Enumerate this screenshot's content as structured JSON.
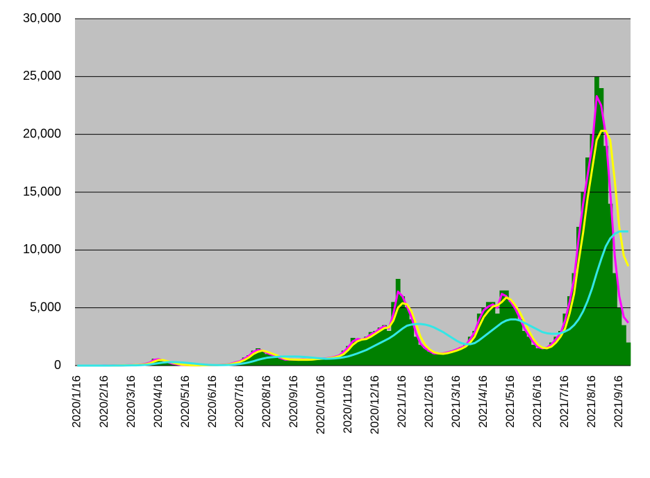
{
  "chart_data": {
    "type": "bar",
    "categories": [
      "2020/1/16",
      null,
      null,
      null,
      null,
      null,
      "2020/2/16",
      null,
      null,
      null,
      null,
      null,
      "2020/3/16",
      null,
      null,
      null,
      null,
      null,
      "2020/4/16",
      null,
      null,
      null,
      null,
      null,
      "2020/5/16",
      null,
      null,
      null,
      null,
      null,
      "2020/6/16",
      null,
      null,
      null,
      null,
      null,
      "2020/7/16",
      null,
      null,
      null,
      null,
      null,
      "2020/8/16",
      null,
      null,
      null,
      null,
      null,
      "2020/9/16",
      null,
      null,
      null,
      null,
      null,
      "2020/10/16",
      null,
      null,
      null,
      null,
      null,
      "2020/11/16",
      null,
      null,
      null,
      null,
      null,
      "2020/12/16",
      null,
      null,
      null,
      null,
      null,
      "2021/1/16",
      null,
      null,
      null,
      null,
      null,
      "2021/2/16",
      null,
      null,
      null,
      null,
      null,
      "2021/3/16",
      null,
      null,
      null,
      null,
      null,
      "2021/4/16",
      null,
      null,
      null,
      null,
      null,
      "2021/5/16",
      null,
      null,
      null,
      null,
      null,
      "2021/6/16",
      null,
      null,
      null,
      null,
      null,
      "2021/7/16",
      null,
      null,
      null,
      null,
      null,
      "2021/8/16",
      null,
      null,
      null,
      null,
      null,
      "2021/9/16",
      null,
      null
    ],
    "series": [
      {
        "type": "bar",
        "color": "#008000",
        "values": [
          0,
          0,
          0,
          0,
          0,
          0,
          5,
          10,
          15,
          20,
          30,
          50,
          40,
          60,
          100,
          200,
          300,
          600,
          500,
          400,
          250,
          150,
          100,
          50,
          30,
          20,
          20,
          30,
          40,
          40,
          50,
          60,
          90,
          100,
          200,
          300,
          400,
          700,
          900,
          1300,
          1500,
          1200,
          1000,
          900,
          800,
          600,
          500,
          550,
          500,
          500,
          550,
          500,
          550,
          600,
          600,
          600,
          700,
          800,
          900,
          1300,
          1700,
          2400,
          2300,
          2200,
          2500,
          2900,
          3000,
          3300,
          3500,
          3000,
          5500,
          7500,
          6000,
          5000,
          4000,
          2500,
          1800,
          1500,
          1200,
          1000,
          1100,
          1000,
          1200,
          1300,
          1400,
          1600,
          1800,
          2500,
          3000,
          4500,
          5000,
          5500,
          5500,
          4500,
          6500,
          6500,
          5500,
          5000,
          4000,
          3000,
          2500,
          1800,
          1500,
          1500,
          1600,
          2000,
          2500,
          3000,
          4500,
          6000,
          8000,
          12000,
          15000,
          18000,
          20000,
          25000,
          24000,
          19000,
          14000,
          8000,
          5000,
          3500,
          2000
        ]
      },
      {
        "type": "line",
        "color": "#ff00ff",
        "values": [
          0,
          0,
          0,
          0,
          0,
          0,
          5,
          8,
          12,
          18,
          25,
          40,
          45,
          55,
          80,
          150,
          250,
          500,
          550,
          450,
          300,
          180,
          120,
          60,
          35,
          25,
          20,
          25,
          35,
          40,
          45,
          55,
          75,
          95,
          170,
          280,
          380,
          600,
          850,
          1200,
          1350,
          1300,
          1100,
          950,
          850,
          650,
          520,
          530,
          510,
          500,
          530,
          510,
          540,
          580,
          600,
          620,
          680,
          760,
          880,
          1200,
          1600,
          2100,
          2300,
          2250,
          2400,
          2700,
          2900,
          3200,
          3400,
          3200,
          4500,
          6400,
          6000,
          5100,
          4200,
          2800,
          1900,
          1500,
          1250,
          1050,
          1050,
          1050,
          1150,
          1250,
          1400,
          1550,
          1750,
          2300,
          2900,
          4000,
          4800,
          5100,
          5300,
          5000,
          6200,
          6000,
          5500,
          4900,
          4100,
          3200,
          2600,
          2000,
          1600,
          1500,
          1550,
          1850,
          2300,
          2800,
          3900,
          5500,
          7500,
          11000,
          14000,
          16500,
          19000,
          23300,
          22500,
          20000,
          15000,
          9500,
          6000,
          4200,
          3700
        ]
      },
      {
        "type": "line",
        "color": "#ffff00",
        "values": [
          0,
          0,
          0,
          0,
          0,
          0,
          3,
          6,
          10,
          14,
          20,
          30,
          40,
          50,
          65,
          110,
          190,
          350,
          480,
          480,
          380,
          260,
          170,
          100,
          50,
          30,
          22,
          22,
          30,
          35,
          42,
          48,
          62,
          80,
          130,
          220,
          320,
          480,
          700,
          1000,
          1200,
          1300,
          1200,
          1050,
          920,
          760,
          600,
          530,
          520,
          500,
          510,
          500,
          520,
          560,
          590,
          610,
          650,
          710,
          820,
          1000,
          1350,
          1800,
          2100,
          2250,
          2300,
          2500,
          2750,
          3000,
          3250,
          3300,
          3900,
          5000,
          5400,
          5300,
          4700,
          3600,
          2500,
          1800,
          1400,
          1150,
          1050,
          1020,
          1080,
          1180,
          1300,
          1450,
          1650,
          2000,
          2500,
          3400,
          4200,
          4700,
          5100,
          5200,
          5500,
          5900,
          5700,
          5200,
          4600,
          3800,
          3000,
          2300,
          1800,
          1550,
          1500,
          1650,
          2000,
          2500,
          3200,
          4500,
          6200,
          9000,
          11500,
          14500,
          17000,
          19500,
          20300,
          20300,
          19500,
          16000,
          12000,
          9500,
          8600
        ]
      },
      {
        "type": "line",
        "color": "#33e6e6",
        "values": [
          0,
          0,
          0,
          0,
          0,
          0,
          1,
          2,
          4,
          7,
          10,
          15,
          20,
          25,
          35,
          60,
          90,
          150,
          210,
          260,
          300,
          310,
          300,
          280,
          250,
          210,
          170,
          130,
          100,
          70,
          55,
          45,
          45,
          55,
          70,
          100,
          140,
          200,
          280,
          380,
          500,
          600,
          680,
          720,
          750,
          780,
          790,
          790,
          790,
          780,
          760,
          730,
          690,
          650,
          620,
          590,
          600,
          620,
          660,
          720,
          800,
          920,
          1050,
          1200,
          1350,
          1550,
          1750,
          1950,
          2150,
          2350,
          2600,
          2900,
          3200,
          3450,
          3550,
          3600,
          3600,
          3550,
          3450,
          3300,
          3100,
          2900,
          2650,
          2400,
          2150,
          1950,
          1850,
          1850,
          1950,
          2200,
          2500,
          2800,
          3100,
          3400,
          3700,
          3900,
          4000,
          4000,
          3900,
          3700,
          3500,
          3300,
          3100,
          2900,
          2800,
          2750,
          2750,
          2800,
          2950,
          3150,
          3500,
          4000,
          4700,
          5600,
          6700,
          8000,
          9200,
          10300,
          11000,
          11400,
          11600,
          11600,
          11600
        ]
      }
    ],
    "ylim": [
      0,
      30000
    ],
    "yticks": [
      0,
      {
        "value": 5000,
        "label": "5,000"
      },
      {
        "value": 10000,
        "label": "10,000"
      },
      {
        "value": 15000,
        "label": "15,000"
      },
      {
        "value": 20000,
        "label": "20,000"
      },
      {
        "value": 25000,
        "label": "25,000"
      },
      {
        "value": 30000,
        "label": "30,000"
      }
    ],
    "grid": true
  }
}
